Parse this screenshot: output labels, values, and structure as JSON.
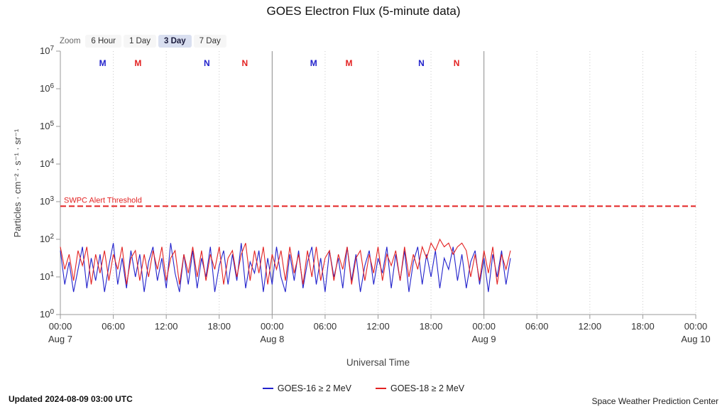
{
  "title": "GOES Electron Flux (5-minute data)",
  "zoom": {
    "label": "Zoom",
    "buttons": [
      {
        "label": "6 Hour",
        "selected": false
      },
      {
        "label": "1 Day",
        "selected": false
      },
      {
        "label": "3 Day",
        "selected": true
      },
      {
        "label": "7 Day",
        "selected": false
      }
    ]
  },
  "footer": {
    "updated": "Updated 2024-08-09 03:00 UTC",
    "credit": "Space Weather Prediction Center"
  },
  "chart_data": {
    "type": "line",
    "title": "GOES Electron Flux (5-minute data)",
    "y_axis": {
      "title": "Particles · cm⁻² · s⁻¹ · sr⁻¹",
      "scale": "log10",
      "prefix": "10",
      "exponents": [
        0,
        1,
        2,
        3,
        4,
        5,
        6,
        7
      ]
    },
    "x_axis": {
      "title": "Universal Time",
      "range_hours": [
        0,
        72
      ],
      "ticks": [
        {
          "hour": 0,
          "label": "00:00",
          "date": "Aug 7"
        },
        {
          "hour": 6,
          "label": "06:00"
        },
        {
          "hour": 12,
          "label": "12:00"
        },
        {
          "hour": 18,
          "label": "18:00"
        },
        {
          "hour": 24,
          "label": "00:00",
          "date": "Aug 8"
        },
        {
          "hour": 30,
          "label": "06:00"
        },
        {
          "hour": 36,
          "label": "12:00"
        },
        {
          "hour": 42,
          "label": "18:00"
        },
        {
          "hour": 48,
          "label": "00:00",
          "date": "Aug 9"
        },
        {
          "hour": 54,
          "label": "06:00"
        },
        {
          "hour": 60,
          "label": "12:00"
        },
        {
          "hour": 66,
          "label": "18:00"
        },
        {
          "hour": 72,
          "label": "00:00",
          "date": "Aug 10"
        }
      ],
      "day_separator_hours": [
        24,
        48
      ]
    },
    "threshold": {
      "label": "SWPC Alert Threshold",
      "log_value": 2.88,
      "color": "#e32222"
    },
    "markers": [
      {
        "label": "M",
        "hour": 4.8,
        "series": 0
      },
      {
        "label": "M",
        "hour": 8.8,
        "series": 1
      },
      {
        "label": "N",
        "hour": 16.6,
        "series": 0
      },
      {
        "label": "N",
        "hour": 20.9,
        "series": 1
      },
      {
        "label": "M",
        "hour": 28.7,
        "series": 0
      },
      {
        "label": "M",
        "hour": 32.7,
        "series": 1
      },
      {
        "label": "N",
        "hour": 40.9,
        "series": 0
      },
      {
        "label": "N",
        "hour": 44.9,
        "series": 1
      }
    ],
    "x_start_hour": 0,
    "x_step_hour": 0.5,
    "series": [
      {
        "name": "GOES-16 ≥ 2 MeV",
        "color": "#2222cc",
        "values_log10": [
          1.7,
          0.8,
          1.4,
          0.6,
          1.2,
          1.8,
          0.7,
          1.5,
          0.9,
          1.6,
          0.6,
          1.3,
          1.9,
          0.8,
          1.5,
          0.7,
          1.7,
          1.0,
          1.6,
          0.6,
          1.4,
          1.8,
          0.9,
          1.5,
          0.7,
          1.9,
          1.1,
          0.6,
          1.6,
          0.8,
          1.7,
          0.7,
          1.5,
          1.0,
          1.8,
          0.6,
          1.3,
          1.7,
          0.8,
          1.6,
          0.9,
          1.9,
          0.7,
          1.4,
          1.1,
          1.7,
          0.6,
          1.5,
          0.8,
          1.8,
          1.0,
          0.6,
          1.6,
          0.9,
          1.7,
          0.7,
          1.4,
          1.8,
          0.8,
          1.5,
          0.6,
          1.7,
          1.0,
          1.5,
          0.7,
          1.8,
          0.9,
          1.6,
          0.6,
          1.3,
          1.7,
          0.8,
          1.5,
          1.1,
          1.8,
          0.7,
          1.6,
          0.9,
          1.7,
          0.6,
          1.4,
          1.8,
          0.8,
          1.6,
          1.0,
          1.7,
          0.7,
          1.5,
          1.2,
          1.8,
          0.9,
          1.6,
          0.7,
          1.4,
          1.7,
          0.8,
          1.5,
          0.6,
          1.6,
          1.0,
          1.7,
          0.8,
          1.5
        ]
      },
      {
        "name": "GOES-18 ≥ 2 MeV",
        "color": "#e32222",
        "values_log10": [
          1.8,
          1.2,
          1.6,
          0.9,
          1.7,
          1.3,
          1.8,
          0.8,
          1.6,
          1.1,
          1.7,
          0.9,
          1.6,
          1.2,
          1.8,
          0.8,
          1.5,
          1.7,
          0.9,
          1.6,
          1.0,
          1.7,
          1.2,
          1.8,
          0.9,
          1.5,
          1.7,
          0.8,
          1.6,
          1.1,
          1.8,
          1.0,
          1.7,
          0.9,
          1.6,
          1.2,
          1.8,
          0.8,
          1.5,
          1.7,
          1.0,
          1.6,
          1.9,
          0.9,
          1.7,
          1.1,
          1.8,
          0.8,
          1.6,
          1.2,
          1.7,
          0.9,
          1.8,
          1.1,
          1.6,
          0.8,
          1.7,
          1.0,
          1.8,
          0.9,
          1.5,
          1.7,
          0.9,
          1.6,
          1.2,
          1.8,
          0.8,
          1.5,
          1.7,
          0.9,
          1.6,
          1.1,
          1.8,
          0.9,
          1.6,
          1.3,
          1.7,
          0.9,
          1.8,
          1.0,
          1.6,
          1.2,
          1.8,
          1.5,
          1.9,
          1.7,
          2.0,
          1.8,
          1.9,
          1.6,
          1.8,
          1.9,
          1.7,
          1.0,
          1.6,
          0.9,
          1.7,
          1.1,
          1.8,
          0.8,
          1.6,
          1.2,
          1.7
        ]
      }
    ]
  }
}
